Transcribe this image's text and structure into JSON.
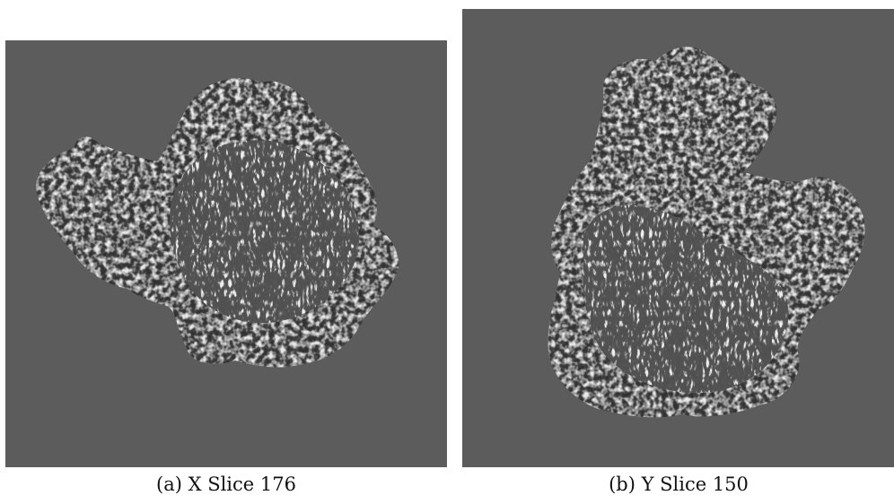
{
  "figure": {
    "background_color": "#ffffff",
    "panels": [
      {
        "id": "a",
        "caption": "(a) X Slice 176",
        "field_color": "#5c5c5c"
      },
      {
        "id": "b",
        "caption": "(b) Y Slice 150",
        "field_color": "#5c5c5c"
      }
    ]
  }
}
